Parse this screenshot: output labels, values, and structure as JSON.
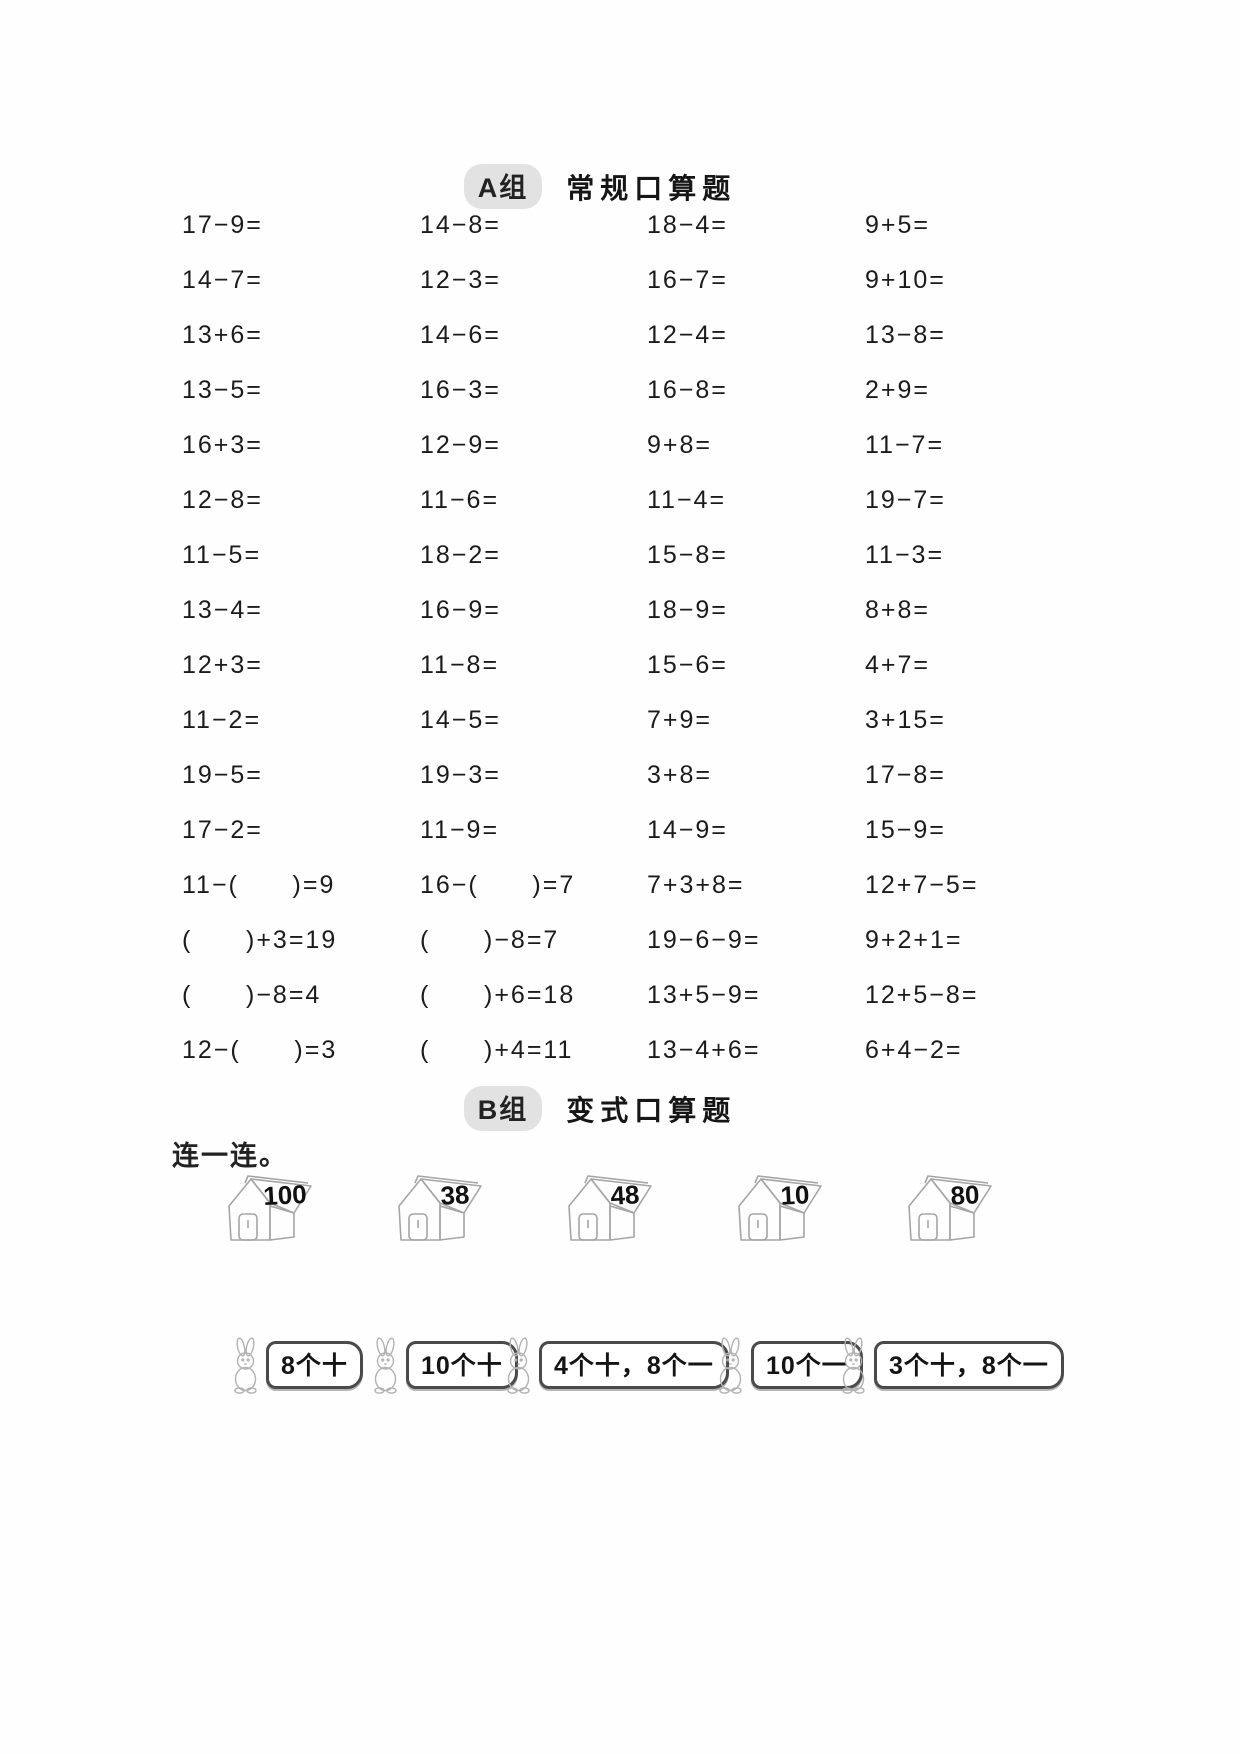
{
  "page": {
    "background": "#fefefe",
    "text_color": "#1d1d1d",
    "badge_background": "#e2e2e2",
    "drawing_stroke": "#a5a5a5"
  },
  "section_a": {
    "group_label": "A组",
    "title": "常规口算题",
    "problem_rows": [
      [
        "17−9=",
        "14−8=",
        "18−4=",
        "9+5="
      ],
      [
        "14−7=",
        "12−3=",
        "16−7=",
        "9+10="
      ],
      [
        "13+6=",
        "14−6=",
        "12−4=",
        "13−8="
      ],
      [
        "13−5=",
        "16−3=",
        "16−8=",
        "2+9="
      ],
      [
        "16+3=",
        "12−9=",
        "9+8=",
        "11−7="
      ],
      [
        "12−8=",
        "11−6=",
        "11−4=",
        "19−7="
      ],
      [
        "11−5=",
        "18−2=",
        "15−8=",
        "11−3="
      ],
      [
        "13−4=",
        "16−9=",
        "18−9=",
        "8+8="
      ],
      [
        "12+3=",
        "11−8=",
        "15−6=",
        "4+7="
      ],
      [
        "11−2=",
        "14−5=",
        "7+9=",
        "3+15="
      ],
      [
        "19−5=",
        "19−3=",
        "3+8=",
        "17−8="
      ],
      [
        "17−2=",
        "11−9=",
        "14−9=",
        "15−9="
      ],
      [
        "11−(      )=9",
        "16−(      )=7",
        "7+3+8=",
        "12+7−5="
      ],
      [
        "(      )+3=19",
        "(      )−8=7",
        "19−6−9=",
        "9+2+1="
      ],
      [
        "(      )−8=4",
        "(      )+6=18",
        "13+5−9=",
        "12+5−8="
      ],
      [
        "12−(      )=3",
        "(      )+4=11",
        "13−4+6=",
        "6+4−2="
      ]
    ]
  },
  "section_b": {
    "group_label": "B组",
    "title": "变式口算题",
    "instruction": "连一连。",
    "houses": [
      "100",
      "38",
      "48",
      "10",
      "80"
    ],
    "rabbit_labels": [
      "8个十",
      "10个十",
      "4个十，8个一",
      "10个一",
      "3个十，8个一"
    ]
  }
}
